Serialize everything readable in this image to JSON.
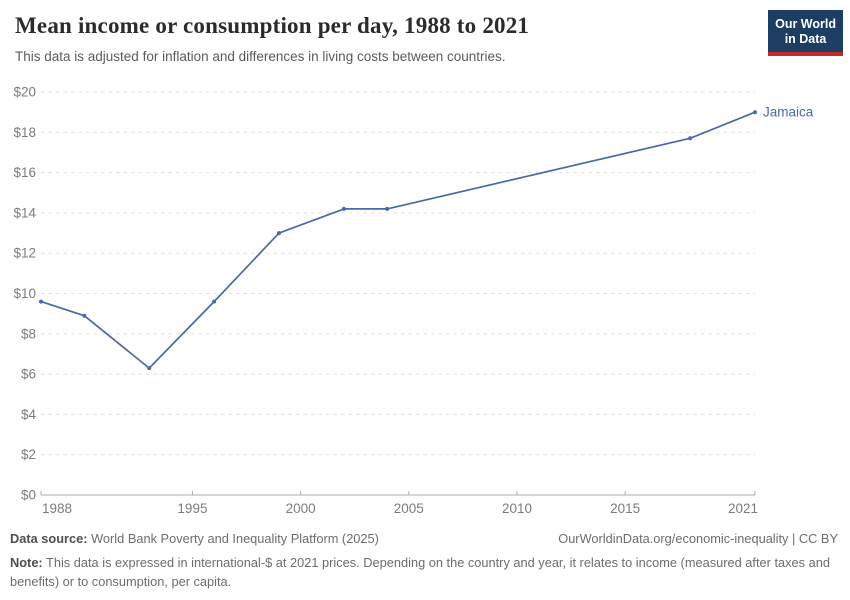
{
  "header": {
    "title": "Mean income or consumption per day, 1988 to 2021",
    "subtitle": "This data is adjusted for inflation and differences in living costs between countries.",
    "logo": {
      "line1": "Our World",
      "line2": "in Data",
      "bg_color": "#1d3d63",
      "bar_color": "#c1272d"
    }
  },
  "chart_data": {
    "type": "line",
    "title": "Mean income or consumption per day, 1988 to 2021",
    "entity": "Jamaica",
    "x": [
      1988,
      1990,
      1993,
      1996,
      1999,
      2002,
      2004,
      2018,
      2021
    ],
    "values": [
      9.6,
      8.9,
      6.3,
      9.6,
      13.0,
      14.2,
      14.2,
      17.7,
      19.0
    ],
    "series": [
      {
        "name": "Jamaica",
        "color": "#4a69a8"
      }
    ],
    "xlabel": "",
    "ylabel": "",
    "xlim": [
      1988,
      2021
    ],
    "ylim": [
      0,
      20
    ],
    "x_ticks": [
      1988,
      1995,
      2000,
      2005,
      2010,
      2015,
      2021
    ],
    "y_ticks": [
      {
        "value": 0,
        "label": "$0"
      },
      {
        "value": 2,
        "label": "$2"
      },
      {
        "value": 4,
        "label": "$4"
      },
      {
        "value": 6,
        "label": "$6"
      },
      {
        "value": 8,
        "label": "$8"
      },
      {
        "value": 10,
        "label": "$10"
      },
      {
        "value": 12,
        "label": "$12"
      },
      {
        "value": 14,
        "label": "$14"
      },
      {
        "value": 16,
        "label": "$16"
      },
      {
        "value": 18,
        "label": "$18"
      },
      {
        "value": 20,
        "label": "$20"
      }
    ],
    "grid": "horizontal-dashed",
    "legend_position": "line-end-label",
    "line_color": "#4a69a8"
  },
  "footer": {
    "datasource_label": "Data source:",
    "datasource_text": " World Bank Poverty and Inequality Platform (2025)",
    "link": "OurWorldinData.org/economic-inequality | CC BY",
    "note_label": "Note:",
    "note_text": " This data is expressed in international-$ at 2021 prices. Depending on the country and year, it relates to income (measured after taxes and benefits) or to consumption, per capita."
  }
}
